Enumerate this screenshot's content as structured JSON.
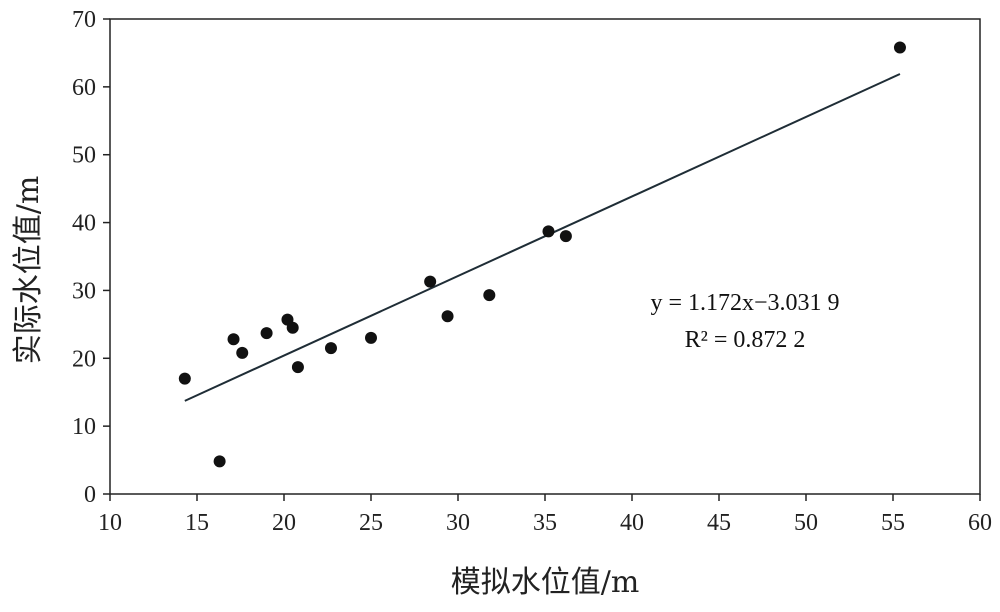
{
  "chart_data": {
    "type": "scatter",
    "xlabel": "模拟水位值/m",
    "ylabel": "实际水位值/m",
    "xlim": [
      10,
      60
    ],
    "ylim": [
      0,
      70
    ],
    "xticks": [
      10,
      15,
      20,
      25,
      30,
      35,
      40,
      45,
      50,
      55,
      60
    ],
    "yticks": [
      0,
      10,
      20,
      30,
      40,
      50,
      60,
      70
    ],
    "grid": false,
    "points": [
      {
        "x": 14.3,
        "y": 17.0
      },
      {
        "x": 16.3,
        "y": 4.8
      },
      {
        "x": 17.1,
        "y": 22.8
      },
      {
        "x": 17.6,
        "y": 20.8
      },
      {
        "x": 19.0,
        "y": 23.7
      },
      {
        "x": 20.2,
        "y": 25.7
      },
      {
        "x": 20.5,
        "y": 24.5
      },
      {
        "x": 20.8,
        "y": 18.7
      },
      {
        "x": 22.7,
        "y": 21.5
      },
      {
        "x": 25.0,
        "y": 23.0
      },
      {
        "x": 28.4,
        "y": 31.3
      },
      {
        "x": 29.4,
        "y": 26.2
      },
      {
        "x": 31.8,
        "y": 29.3
      },
      {
        "x": 35.2,
        "y": 38.7
      },
      {
        "x": 36.2,
        "y": 38.0
      },
      {
        "x": 55.4,
        "y": 65.8
      }
    ],
    "trendline": {
      "slope": 1.172,
      "intercept": -3.0319,
      "x_range": [
        14.3,
        55.4
      ],
      "equation_label": "y = 1.172x−3.031 9",
      "r2_label": "R² = 0.872 2"
    }
  }
}
